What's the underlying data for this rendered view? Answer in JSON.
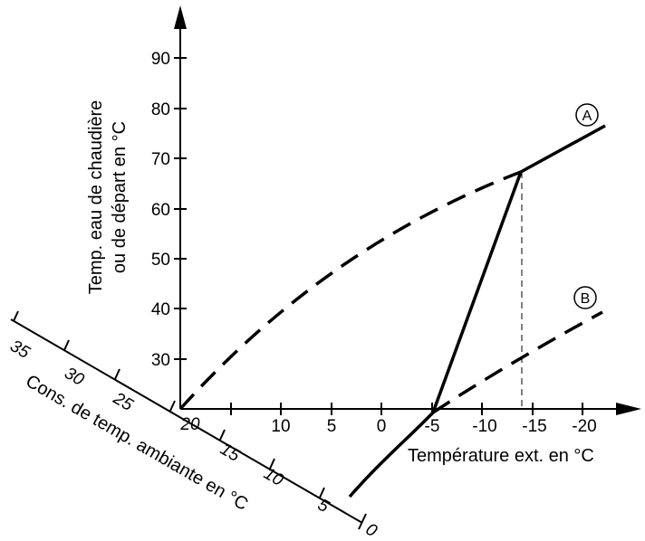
{
  "diagram": {
    "y_axis": {
      "title_line1": "Temp. eau de chaudière",
      "title_line2": "ou de départ en °C",
      "tick_labels": [
        "30",
        "40",
        "50",
        "60",
        "70",
        "80",
        "90"
      ]
    },
    "x_axis": {
      "title": "Température ext. en °C",
      "tick_labels": [
        "10",
        "5",
        "0",
        "-5",
        "-10",
        "-15",
        "-20"
      ]
    },
    "room_axis": {
      "title": "Cons. de temp. ambiante en °C",
      "tick_labels": [
        "35",
        "30",
        "25",
        "20",
        "15",
        "10",
        "5",
        "0"
      ]
    },
    "origin_label": "20",
    "markers": [
      {
        "id": "A",
        "label": "A"
      },
      {
        "id": "B",
        "label": "B"
      }
    ]
  }
}
